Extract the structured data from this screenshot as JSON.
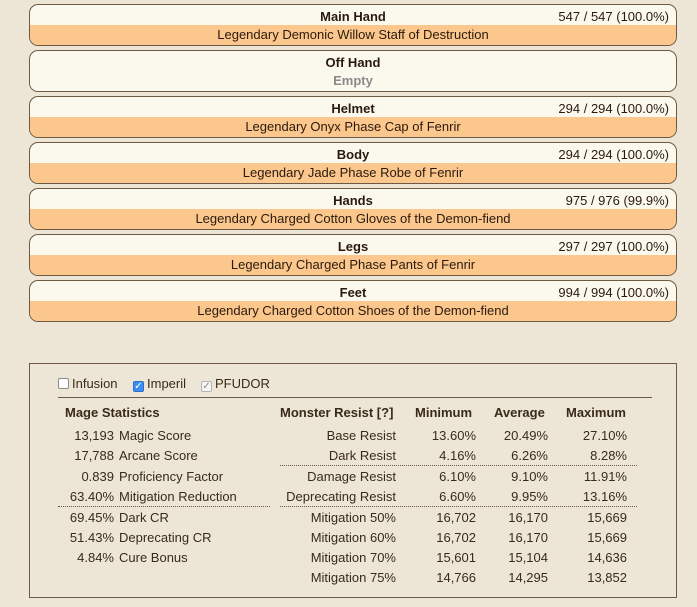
{
  "equipment": [
    {
      "slot": "Main Hand",
      "durability": "547 / 547 (100.0%)",
      "item": "Legendary Demonic Willow Staff of Destruction"
    },
    {
      "slot": "Off Hand",
      "durability": "",
      "item": "Empty"
    },
    {
      "slot": "Helmet",
      "durability": "294 / 294 (100.0%)",
      "item": "Legendary Onyx Phase Cap of Fenrir"
    },
    {
      "slot": "Body",
      "durability": "294 / 294 (100.0%)",
      "item": "Legendary Jade Phase Robe of Fenrir"
    },
    {
      "slot": "Hands",
      "durability": "975 / 976 (99.9%)",
      "item": "Legendary Charged Cotton Gloves of the Demon-fiend"
    },
    {
      "slot": "Legs",
      "durability": "297 / 297 (100.0%)",
      "item": "Legendary Charged Phase Pants of Fenrir"
    },
    {
      "slot": "Feet",
      "durability": "994 / 994 (100.0%)",
      "item": "Legendary Charged Cotton Shoes of the Demon-fiend"
    }
  ],
  "options": [
    {
      "label": "Infusion",
      "checked": false
    },
    {
      "label": "Imperil",
      "checked": true
    },
    {
      "label": "PFUDOR",
      "checked": true
    }
  ],
  "mage": {
    "title": "Mage Statistics",
    "rows": [
      {
        "value": "13,193",
        "label": "Magic Score"
      },
      {
        "value": "17,788",
        "label": "Arcane Score"
      },
      {
        "value": "0.839",
        "label": "Proficiency Factor"
      },
      {
        "value": "63.40%",
        "label": "Mitigation Reduction"
      },
      {
        "value": "69.45%",
        "label": "Dark CR"
      },
      {
        "value": "51.43%",
        "label": "Deprecating CR"
      },
      {
        "value": "4.84%",
        "label": "Cure Bonus"
      }
    ]
  },
  "monster": {
    "headers": [
      "Monster Resist [?]",
      "Minimum",
      "Average",
      "Maximum"
    ],
    "rows": [
      {
        "label": "Base Resist",
        "min": "13.60%",
        "avg": "20.49%",
        "max": "27.10%"
      },
      {
        "label": "Dark Resist",
        "min": "4.16%",
        "avg": "6.26%",
        "max": "8.28%"
      },
      {
        "label": "Damage Resist",
        "min": "6.10%",
        "avg": "9.10%",
        "max": "11.91%"
      },
      {
        "label": "Deprecating Resist",
        "min": "6.60%",
        "avg": "9.95%",
        "max": "13.16%"
      },
      {
        "label": "Mitigation 50%",
        "min": "16,702",
        "avg": "16,170",
        "max": "15,669"
      },
      {
        "label": "Mitigation 60%",
        "min": "16,702",
        "avg": "16,170",
        "max": "15,669"
      },
      {
        "label": "Mitigation 70%",
        "min": "15,601",
        "avg": "15,104",
        "max": "14,636"
      },
      {
        "label": "Mitigation 75%",
        "min": "14,766",
        "avg": "14,295",
        "max": "13,852"
      }
    ]
  }
}
